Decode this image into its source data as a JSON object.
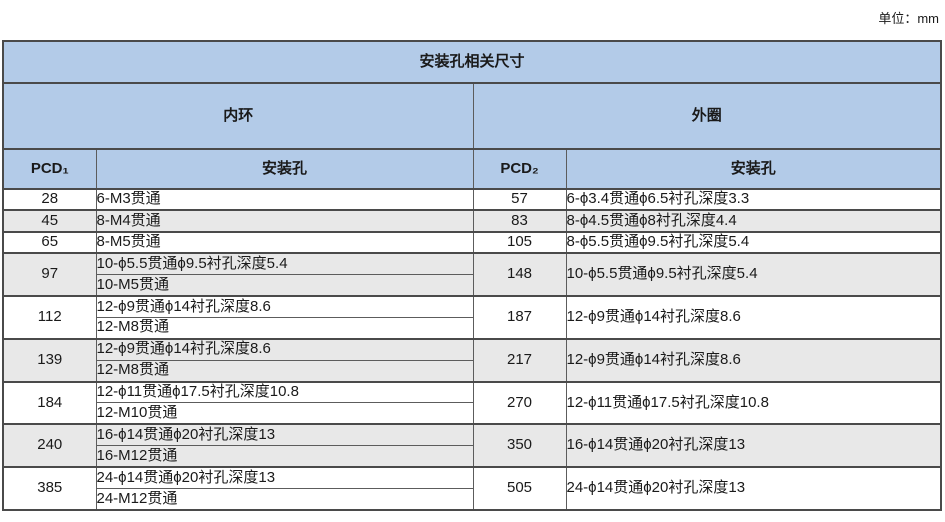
{
  "unit_label": "单位：mm",
  "table": {
    "title": "安装孔相关尺寸",
    "sections": [
      {
        "label": "内环"
      },
      {
        "label": "外圈"
      }
    ],
    "columns": [
      "PCD₁",
      "安装孔",
      "PCD₂",
      "安装孔"
    ],
    "rows": [
      {
        "pcd1": "28",
        "inner": [
          "6-M3贯通"
        ],
        "pcd2": "57",
        "outer": "6-ϕ3.4贯通ϕ6.5衬孔深度3.3",
        "shaded": false
      },
      {
        "pcd1": "45",
        "inner": [
          "8-M4贯通"
        ],
        "pcd2": "83",
        "outer": "8-ϕ4.5贯通ϕ8衬孔深度4.4",
        "shaded": true
      },
      {
        "pcd1": "65",
        "inner": [
          "8-M5贯通"
        ],
        "pcd2": "105",
        "outer": "8-ϕ5.5贯通ϕ9.5衬孔深度5.4",
        "shaded": false
      },
      {
        "pcd1": "97",
        "inner": [
          "10-ϕ5.5贯通ϕ9.5衬孔深度5.4",
          "10-M5贯通"
        ],
        "pcd2": "148",
        "outer": "10-ϕ5.5贯通ϕ9.5衬孔深度5.4",
        "shaded": true
      },
      {
        "pcd1": "112",
        "inner": [
          "12-ϕ9贯通ϕ14衬孔深度8.6",
          "12-M8贯通"
        ],
        "pcd2": "187",
        "outer": "12-ϕ9贯通ϕ14衬孔深度8.6",
        "shaded": false
      },
      {
        "pcd1": "139",
        "inner": [
          "12-ϕ9贯通ϕ14衬孔深度8.6",
          "12-M8贯通"
        ],
        "pcd2": "217",
        "outer": "12-ϕ9贯通ϕ14衬孔深度8.6",
        "shaded": true
      },
      {
        "pcd1": "184",
        "inner": [
          "12-ϕ11贯通ϕ17.5衬孔深度10.8",
          "12-M10贯通"
        ],
        "pcd2": "270",
        "outer": "12-ϕ11贯通ϕ17.5衬孔深度10.8",
        "shaded": false
      },
      {
        "pcd1": "240",
        "inner": [
          "16-ϕ14贯通ϕ20衬孔深度13",
          "16-M12贯通"
        ],
        "pcd2": "350",
        "outer": "16-ϕ14贯通ϕ20衬孔深度13",
        "shaded": true
      },
      {
        "pcd1": "385",
        "inner": [
          "24-ϕ14贯通ϕ20衬孔深度13",
          "24-M12贯通"
        ],
        "pcd2": "505",
        "outer": "24-ϕ14贯通ϕ20衬孔深度13",
        "shaded": false
      }
    ]
  },
  "colors": {
    "header_blue": "#b3cbe8",
    "row_shaded": "#e8e8e8",
    "row_plain": "#ffffff",
    "border_dark": "#4a4a4a",
    "border_inner": "#5c5c5c"
  }
}
